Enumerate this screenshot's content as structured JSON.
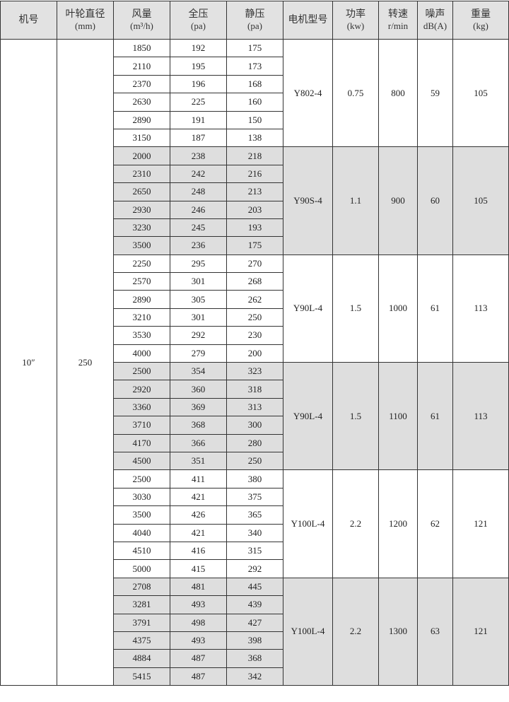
{
  "header": [
    {
      "line1": "机号",
      "line2": ""
    },
    {
      "line1": "叶轮直径",
      "line2": "(mm)"
    },
    {
      "line1": "风量",
      "line2": "(m³/h)"
    },
    {
      "line1": "全压",
      "line2": "(pa)"
    },
    {
      "line1": "静压",
      "line2": "(pa)"
    },
    {
      "line1": "电机型号",
      "line2": ""
    },
    {
      "line1": "功率",
      "line2": "(kw)"
    },
    {
      "line1": "转速",
      "line2": "r/min"
    },
    {
      "line1": "噪声",
      "line2": "dB(A)"
    },
    {
      "line1": "重量",
      "line2": "(kg)"
    }
  ],
  "model_no": "10″",
  "impeller_diameter": "250",
  "shade_color": "#dedede",
  "groups": [
    {
      "motor": "Y802-4",
      "power": "0.75",
      "speed": "800",
      "noise": "59",
      "weight": "105",
      "shaded": false,
      "rows": [
        [
          "1850",
          "192",
          "175"
        ],
        [
          "2110",
          "195",
          "173"
        ],
        [
          "2370",
          "196",
          "168"
        ],
        [
          "2630",
          "225",
          "160"
        ],
        [
          "2890",
          "191",
          "150"
        ],
        [
          "3150",
          "187",
          "138"
        ]
      ]
    },
    {
      "motor": "Y90S-4",
      "power": "1.1",
      "speed": "900",
      "noise": "60",
      "weight": "105",
      "shaded": true,
      "rows": [
        [
          "2000",
          "238",
          "218"
        ],
        [
          "2310",
          "242",
          "216"
        ],
        [
          "2650",
          "248",
          "213"
        ],
        [
          "2930",
          "246",
          "203"
        ],
        [
          "3230",
          "245",
          "193"
        ],
        [
          "3500",
          "236",
          "175"
        ]
      ]
    },
    {
      "motor": "Y90L-4",
      "power": "1.5",
      "speed": "1000",
      "noise": "61",
      "weight": "113",
      "shaded": false,
      "rows": [
        [
          "2250",
          "295",
          "270"
        ],
        [
          "2570",
          "301",
          "268"
        ],
        [
          "2890",
          "305",
          "262"
        ],
        [
          "3210",
          "301",
          "250"
        ],
        [
          "3530",
          "292",
          "230"
        ],
        [
          "4000",
          "279",
          "200"
        ]
      ]
    },
    {
      "motor": "Y90L-4",
      "power": "1.5",
      "speed": "1100",
      "noise": "61",
      "weight": "113",
      "shaded": true,
      "rows": [
        [
          "2500",
          "354",
          "323"
        ],
        [
          "2920",
          "360",
          "318"
        ],
        [
          "3360",
          "369",
          "313"
        ],
        [
          "3710",
          "368",
          "300"
        ],
        [
          "4170",
          "366",
          "280"
        ],
        [
          "4500",
          "351",
          "250"
        ]
      ]
    },
    {
      "motor": "Y100L-4",
      "power": "2.2",
      "speed": "1200",
      "noise": "62",
      "weight": "121",
      "shaded": false,
      "rows": [
        [
          "2500",
          "411",
          "380"
        ],
        [
          "3030",
          "421",
          "375"
        ],
        [
          "3500",
          "426",
          "365"
        ],
        [
          "4040",
          "421",
          "340"
        ],
        [
          "4510",
          "416",
          "315"
        ],
        [
          "5000",
          "415",
          "292"
        ]
      ]
    },
    {
      "motor": "Y100L-4",
      "power": "2.2",
      "speed": "1300",
      "noise": "63",
      "weight": "121",
      "shaded": true,
      "rows": [
        [
          "2708",
          "481",
          "445"
        ],
        [
          "3281",
          "493",
          "439"
        ],
        [
          "3791",
          "498",
          "427"
        ],
        [
          "4375",
          "493",
          "398"
        ],
        [
          "4884",
          "487",
          "368"
        ],
        [
          "5415",
          "487",
          "342"
        ]
      ]
    }
  ]
}
